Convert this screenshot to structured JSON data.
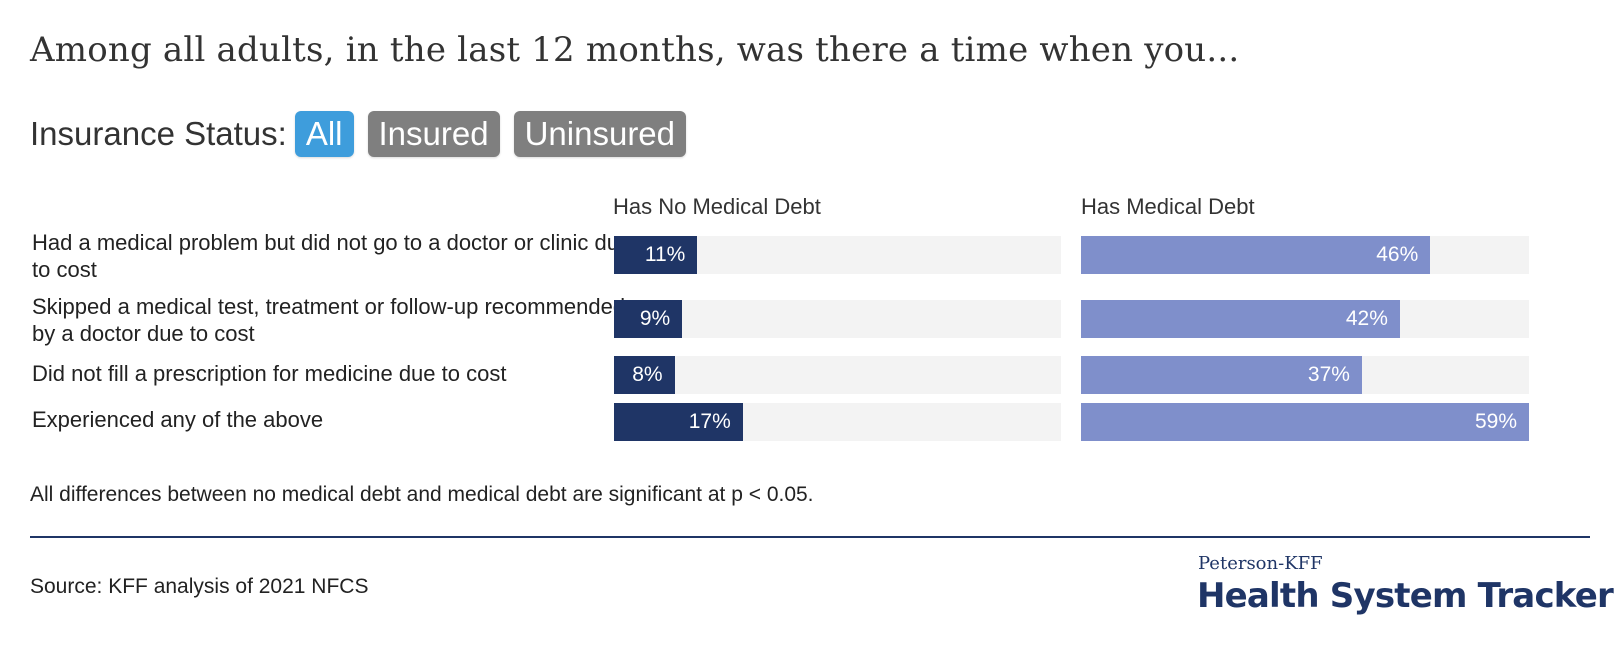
{
  "title": "Among all adults, in the last 12 months, was there a time when you...",
  "filter": {
    "label": "Insurance Status:",
    "options": [
      "All",
      "Insured",
      "Uninsured"
    ],
    "selected": "All"
  },
  "chart_data": {
    "type": "bar",
    "orientation": "horizontal",
    "categories": [
      "Had a medical problem but did not go to a doctor or clinic due to cost",
      "Skipped a medical test, treatment or follow-up recommended by a doctor due to cost",
      "Did not fill a prescription for medicine due to cost",
      "Experienced any of the above"
    ],
    "series": [
      {
        "name": "Has No Medical Debt",
        "values": [
          11,
          9,
          8,
          17
        ],
        "color": "#1f3566"
      },
      {
        "name": "Has Medical Debt",
        "values": [
          46,
          42,
          37,
          59
        ],
        "color": "#7f8fcb"
      }
    ],
    "unit": "%",
    "xlim": [
      0,
      60
    ],
    "legend": "column-headers"
  },
  "note": "All differences between no medical debt and medical debt are significant at p < 0.05.",
  "source": "Source: KFF analysis of 2021 NFCS",
  "brand": {
    "line1": "Peterson-KFF",
    "line2": "Health System Tracker"
  },
  "colors": {
    "accent_active": "#3e9ddc",
    "inactive_pill": "#7f7f7f",
    "brand_navy": "#1f3566",
    "track": "#f3f3f3"
  }
}
